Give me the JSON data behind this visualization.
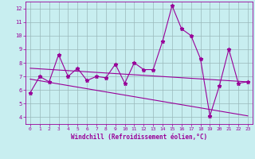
{
  "xlabel": "Windchill (Refroidissement éolien,°C)",
  "background_color": "#c8eef0",
  "grid_color": "#b0d8da",
  "line_color": "#990099",
  "spine_color": "#990099",
  "xlim": [
    -0.5,
    23.5
  ],
  "ylim": [
    3.5,
    12.5
  ],
  "yticks": [
    4,
    5,
    6,
    7,
    8,
    9,
    10,
    11,
    12
  ],
  "xticks": [
    0,
    1,
    2,
    3,
    4,
    5,
    6,
    7,
    8,
    9,
    10,
    11,
    12,
    13,
    14,
    15,
    16,
    17,
    18,
    19,
    20,
    21,
    22,
    23
  ],
  "curve1_x": [
    0,
    1,
    2,
    3,
    4,
    5,
    6,
    7,
    8,
    9,
    10,
    11,
    12,
    13,
    14,
    15,
    16,
    17,
    18,
    19,
    20,
    21,
    22,
    23
  ],
  "curve1_y": [
    5.8,
    7.0,
    6.6,
    8.6,
    7.0,
    7.6,
    6.7,
    7.0,
    6.9,
    7.9,
    6.5,
    8.0,
    7.5,
    7.5,
    9.6,
    12.2,
    10.5,
    10.0,
    8.3,
    4.1,
    6.3,
    9.0,
    6.5,
    6.6
  ],
  "curve2_x": [
    0,
    23
  ],
  "curve2_y": [
    7.6,
    6.6
  ],
  "curve3_x": [
    0,
    23
  ],
  "curve3_y": [
    6.8,
    4.1
  ]
}
